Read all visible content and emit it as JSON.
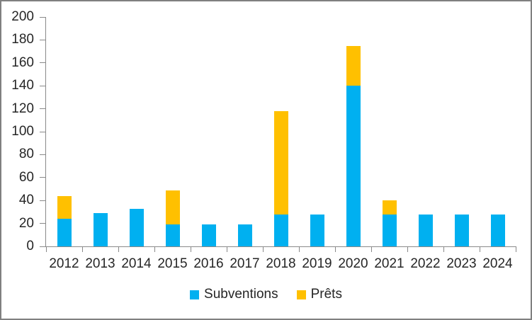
{
  "chart_data": {
    "type": "bar",
    "stacked": true,
    "title": "",
    "xlabel": "",
    "ylabel": "",
    "categories": [
      "2012",
      "2013",
      "2014",
      "2015",
      "2016",
      "2017",
      "2018",
      "2019",
      "2020",
      "2021",
      "2022",
      "2023",
      "2024"
    ],
    "series": [
      {
        "name": "Subventions",
        "key": "subventions",
        "color": "#00B0F0",
        "values": [
          24,
          29,
          33,
          19,
          19,
          19,
          28,
          28,
          140,
          28,
          28,
          28,
          28
        ]
      },
      {
        "name": "Prêts",
        "key": "prets",
        "color": "#FFC000",
        "values": [
          20,
          0,
          0,
          30,
          0,
          0,
          90,
          0,
          35,
          12,
          0,
          0,
          0
        ]
      }
    ],
    "ylim": [
      0,
      200
    ],
    "yticks": [
      0,
      20,
      40,
      60,
      80,
      100,
      120,
      140,
      160,
      180,
      200
    ],
    "grid": false,
    "legend_position": "bottom"
  },
  "colors": {
    "axis": "#898989",
    "text": "#262626",
    "frame_border": "#808080",
    "background": "#FFFFFF",
    "subventions": "#00B0F0",
    "prets": "#FFC000"
  }
}
